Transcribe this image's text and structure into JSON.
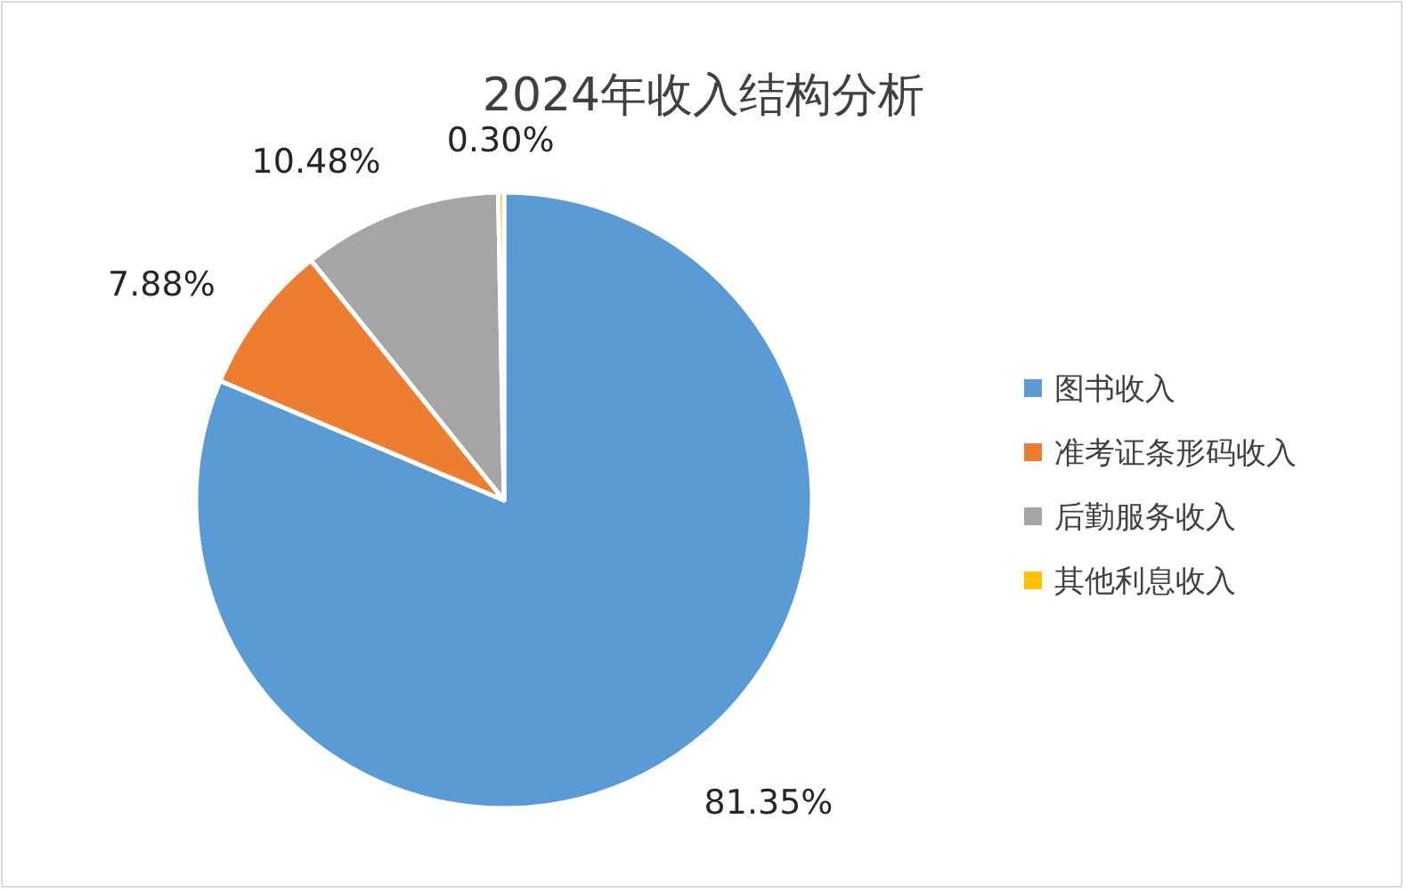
{
  "chart_data": {
    "type": "pie",
    "title": "2024年收入结构分析",
    "categories": [
      "图书收入",
      "准考证条形码收入",
      "后勤服务收入",
      "其他利息收入"
    ],
    "values": [
      81.35,
      7.88,
      10.48,
      0.3
    ],
    "value_labels": [
      "81.35%",
      "7.88%",
      "10.48%",
      "0.30%"
    ],
    "colors": [
      "#5b9bd5",
      "#ed7d31",
      "#a5a5a5",
      "#ffc000"
    ],
    "legend": "right"
  }
}
